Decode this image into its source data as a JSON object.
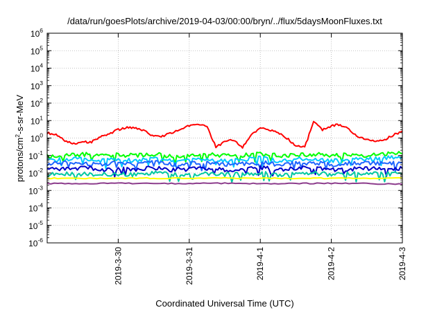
{
  "title": "/data/run/goesPlots/archive/2019-04-03/00:00/bryn/../flux/5daysMoonFluxes.txt",
  "chart_data": {
    "type": "line",
    "title": "/data/run/goesPlots/archive/2019-04-03/00:00/bryn/../flux/5daysMoonFluxes.txt",
    "xlabel": "Coordinated Universal Time (UTC)",
    "ylabel": "protons/cm^2-s-sr-MeV",
    "yscale": "log",
    "xlim": [
      "2019-03-29 00:00",
      "2019-04-03 00:00"
    ],
    "ylim": [
      1e-06,
      1000000.0
    ],
    "grid": true,
    "legend": "none",
    "x_ticks": [
      "2019-3-30",
      "2019-3-31",
      "2019-4-1",
      "2019-4-2",
      "2019-4-3"
    ],
    "y_ticks": [
      {
        "base": "10",
        "exp": "6"
      },
      {
        "base": "10",
        "exp": "5"
      },
      {
        "base": "10",
        "exp": "4"
      },
      {
        "base": "10",
        "exp": "3"
      },
      {
        "base": "10",
        "exp": "2"
      },
      {
        "base": "10",
        "exp": "1"
      },
      {
        "base": "10",
        "exp": "0"
      },
      {
        "base": "10",
        "exp": "-1"
      },
      {
        "base": "10",
        "exp": "-2"
      },
      {
        "base": "10",
        "exp": "-3"
      },
      {
        "base": "10",
        "exp": "-4"
      },
      {
        "base": "10",
        "exp": "-5"
      },
      {
        "base": "10",
        "exp": "-6"
      }
    ],
    "series": [
      {
        "color": "#ff0000",
        "points": [
          [
            "2019-03-29 00:00",
            2.0
          ],
          [
            "2019-03-29 03:00",
            1.5
          ],
          [
            "2019-03-29 06:00",
            0.7
          ],
          [
            "2019-03-29 09:00",
            0.5
          ],
          [
            "2019-03-29 12:00",
            0.6
          ],
          [
            "2019-03-29 15:00",
            0.6
          ],
          [
            "2019-03-29 18:00",
            1.2
          ],
          [
            "2019-03-29 21:00",
            1.8
          ],
          [
            "2019-03-30 00:00",
            3.0
          ],
          [
            "2019-03-30 03:00",
            4.0
          ],
          [
            "2019-03-30 06:00",
            3.5
          ],
          [
            "2019-03-30 09:00",
            2.5
          ],
          [
            "2019-03-30 12:00",
            1.2
          ],
          [
            "2019-03-30 15:00",
            1.3
          ],
          [
            "2019-03-30 18:00",
            2.0
          ],
          [
            "2019-03-30 21:00",
            3.0
          ],
          [
            "2019-03-31 00:00",
            5.0
          ],
          [
            "2019-03-31 03:00",
            5.5
          ],
          [
            "2019-03-31 06:00",
            4.5
          ],
          [
            "2019-03-31 09:00",
            0.3
          ],
          [
            "2019-03-31 12:00",
            0.6
          ],
          [
            "2019-03-31 15:00",
            0.8
          ],
          [
            "2019-03-31 18:00",
            0.3
          ],
          [
            "2019-03-31 21:00",
            1.5
          ],
          [
            "2019-04-01 00:00",
            4.0
          ],
          [
            "2019-04-01 03:00",
            3.0
          ],
          [
            "2019-04-01 06:00",
            2.0
          ],
          [
            "2019-04-01 09:00",
            1.0
          ],
          [
            "2019-04-01 12:00",
            0.35
          ],
          [
            "2019-04-01 15:00",
            0.3
          ],
          [
            "2019-04-01 18:00",
            8.0
          ],
          [
            "2019-04-01 21:00",
            3.0
          ],
          [
            "2019-04-02 00:00",
            5.0
          ],
          [
            "2019-04-02 03:00",
            6.0
          ],
          [
            "2019-04-02 06:00",
            3.0
          ],
          [
            "2019-04-02 09:00",
            1.2
          ],
          [
            "2019-04-02 12:00",
            0.8
          ],
          [
            "2019-04-02 15:00",
            0.6
          ],
          [
            "2019-04-02 18:00",
            0.8
          ],
          [
            "2019-04-02 21:00",
            1.5
          ],
          [
            "2019-04-03 00:00",
            2.5
          ]
        ]
      },
      {
        "color": "#00ff00",
        "points": [
          [
            "2019-03-29 00:00",
            0.09
          ],
          [
            "2019-03-29 06:00",
            0.1
          ],
          [
            "2019-03-29 12:00",
            0.12
          ],
          [
            "2019-03-29 18:00",
            0.09
          ],
          [
            "2019-03-30 00:00",
            0.11
          ],
          [
            "2019-03-30 06:00",
            0.1
          ],
          [
            "2019-03-30 12:00",
            0.12
          ],
          [
            "2019-03-30 18:00",
            0.09
          ],
          [
            "2019-03-31 00:00",
            0.1
          ],
          [
            "2019-03-31 06:00",
            0.11
          ],
          [
            "2019-03-31 12:00",
            0.1
          ],
          [
            "2019-03-31 18:00",
            0.1
          ],
          [
            "2019-04-01 00:00",
            0.12
          ],
          [
            "2019-04-01 06:00",
            0.1
          ],
          [
            "2019-04-01 12:00",
            0.11
          ],
          [
            "2019-04-01 18:00",
            0.12
          ],
          [
            "2019-04-02 00:00",
            0.1
          ],
          [
            "2019-04-02 06:00",
            0.11
          ],
          [
            "2019-04-02 12:00",
            0.1
          ],
          [
            "2019-04-02 18:00",
            0.12
          ],
          [
            "2019-04-03 00:00",
            0.13
          ]
        ]
      },
      {
        "color": "#00c8ff",
        "points": [
          [
            "2019-03-29 00:00",
            0.05
          ],
          [
            "2019-03-29 06:00",
            0.06
          ],
          [
            "2019-03-29 12:00",
            0.07
          ],
          [
            "2019-03-29 18:00",
            0.05
          ],
          [
            "2019-03-30 00:00",
            0.06
          ],
          [
            "2019-03-30 06:00",
            0.05
          ],
          [
            "2019-03-30 12:00",
            0.07
          ],
          [
            "2019-03-30 18:00",
            0.05
          ],
          [
            "2019-03-31 00:00",
            0.06
          ],
          [
            "2019-03-31 06:00",
            0.06
          ],
          [
            "2019-03-31 12:00",
            0.05
          ],
          [
            "2019-03-31 18:00",
            0.06
          ],
          [
            "2019-04-01 00:00",
            0.07
          ],
          [
            "2019-04-01 06:00",
            0.05
          ],
          [
            "2019-04-01 12:00",
            0.06
          ],
          [
            "2019-04-01 18:00",
            0.07
          ],
          [
            "2019-04-02 00:00",
            0.05
          ],
          [
            "2019-04-02 06:00",
            0.06
          ],
          [
            "2019-04-02 12:00",
            0.06
          ],
          [
            "2019-04-02 18:00",
            0.07
          ],
          [
            "2019-04-03 00:00",
            0.08
          ]
        ]
      },
      {
        "color": "#1e64ff",
        "points": [
          [
            "2019-03-29 00:00",
            0.03
          ],
          [
            "2019-03-29 06:00",
            0.04
          ],
          [
            "2019-03-29 12:00",
            0.035
          ],
          [
            "2019-03-29 18:00",
            0.03
          ],
          [
            "2019-03-30 00:00",
            0.04
          ],
          [
            "2019-03-30 06:00",
            0.03
          ],
          [
            "2019-03-30 12:00",
            0.045
          ],
          [
            "2019-03-30 18:00",
            0.03
          ],
          [
            "2019-03-31 00:00",
            0.035
          ],
          [
            "2019-03-31 06:00",
            0.04
          ],
          [
            "2019-03-31 12:00",
            0.03
          ],
          [
            "2019-03-31 18:00",
            0.035
          ],
          [
            "2019-04-01 00:00",
            0.04
          ],
          [
            "2019-04-01 06:00",
            0.03
          ],
          [
            "2019-04-01 12:00",
            0.035
          ],
          [
            "2019-04-01 18:00",
            0.04
          ],
          [
            "2019-04-02 00:00",
            0.03
          ],
          [
            "2019-04-02 06:00",
            0.035
          ],
          [
            "2019-04-02 12:00",
            0.04
          ],
          [
            "2019-04-02 18:00",
            0.035
          ],
          [
            "2019-04-03 00:00",
            0.04
          ]
        ]
      },
      {
        "color": "#0000c8",
        "points": [
          [
            "2019-03-29 00:00",
            0.015
          ],
          [
            "2019-03-29 06:00",
            0.018
          ],
          [
            "2019-03-29 12:00",
            0.02
          ],
          [
            "2019-03-29 18:00",
            0.015
          ],
          [
            "2019-03-30 00:00",
            0.018
          ],
          [
            "2019-03-30 06:00",
            0.016
          ],
          [
            "2019-03-30 12:00",
            0.02
          ],
          [
            "2019-03-30 18:00",
            0.015
          ],
          [
            "2019-03-31 00:00",
            0.017
          ],
          [
            "2019-03-31 06:00",
            0.018
          ],
          [
            "2019-03-31 12:00",
            0.015
          ],
          [
            "2019-03-31 18:00",
            0.017
          ],
          [
            "2019-04-01 00:00",
            0.02
          ],
          [
            "2019-04-01 06:00",
            0.016
          ],
          [
            "2019-04-01 12:00",
            0.018
          ],
          [
            "2019-04-01 18:00",
            0.02
          ],
          [
            "2019-04-02 00:00",
            0.015
          ],
          [
            "2019-04-02 06:00",
            0.017
          ],
          [
            "2019-04-02 12:00",
            0.018
          ],
          [
            "2019-04-02 18:00",
            0.017
          ],
          [
            "2019-04-03 00:00",
            0.018
          ]
        ]
      },
      {
        "color": "#00c8a0",
        "points": [
          [
            "2019-03-29 00:00",
            0.008
          ],
          [
            "2019-03-29 06:00",
            0.009
          ],
          [
            "2019-03-29 12:00",
            0.009
          ],
          [
            "2019-03-29 18:00",
            0.008
          ],
          [
            "2019-03-30 00:00",
            0.009
          ],
          [
            "2019-03-30 06:00",
            0.008
          ],
          [
            "2019-03-30 12:00",
            0.01
          ],
          [
            "2019-03-30 18:00",
            0.008
          ],
          [
            "2019-03-31 00:00",
            0.009
          ],
          [
            "2019-03-31 06:00",
            0.009
          ],
          [
            "2019-03-31 12:00",
            0.008
          ],
          [
            "2019-03-31 18:00",
            0.009
          ],
          [
            "2019-04-01 00:00",
            0.01
          ],
          [
            "2019-04-01 06:00",
            0.008
          ],
          [
            "2019-04-01 12:00",
            0.009
          ],
          [
            "2019-04-01 18:00",
            0.01
          ],
          [
            "2019-04-02 00:00",
            0.008
          ],
          [
            "2019-04-02 06:00",
            0.009
          ],
          [
            "2019-04-02 12:00",
            0.009
          ],
          [
            "2019-04-02 18:00",
            0.009
          ],
          [
            "2019-04-03 00:00",
            0.009
          ]
        ]
      },
      {
        "color": "#ffff00",
        "points": [
          [
            "2019-03-29 00:00",
            0.005
          ],
          [
            "2019-03-29 12:00",
            0.005
          ],
          [
            "2019-03-30 00:00",
            0.005
          ],
          [
            "2019-03-30 12:00",
            0.005
          ],
          [
            "2019-03-31 00:00",
            0.005
          ],
          [
            "2019-03-31 12:00",
            0.005
          ],
          [
            "2019-04-01 00:00",
            0.005
          ],
          [
            "2019-04-01 12:00",
            0.005
          ],
          [
            "2019-04-02 00:00",
            0.005
          ],
          [
            "2019-04-02 12:00",
            0.005
          ],
          [
            "2019-04-03 00:00",
            0.005
          ]
        ]
      },
      {
        "color": "#8c3c8c",
        "points": [
          [
            "2019-03-29 00:00",
            0.0025
          ],
          [
            "2019-03-29 12:00",
            0.0025
          ],
          [
            "2019-03-30 00:00",
            0.0026
          ],
          [
            "2019-03-30 12:00",
            0.0025
          ],
          [
            "2019-03-31 00:00",
            0.0025
          ],
          [
            "2019-03-31 12:00",
            0.0026
          ],
          [
            "2019-04-01 00:00",
            0.0025
          ],
          [
            "2019-04-01 12:00",
            0.0025
          ],
          [
            "2019-04-02 00:00",
            0.0026
          ],
          [
            "2019-04-02 12:00",
            0.0025
          ],
          [
            "2019-04-03 00:00",
            0.0023
          ]
        ]
      }
    ]
  }
}
